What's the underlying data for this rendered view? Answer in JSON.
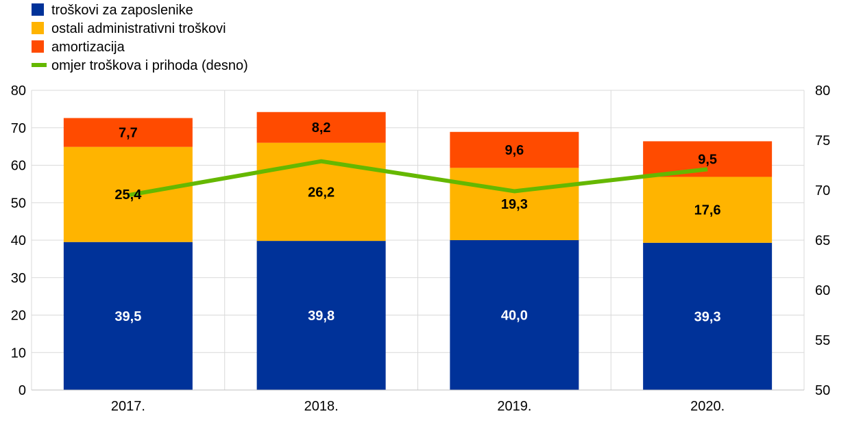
{
  "chart_data": {
    "type": "bar",
    "stacked": true,
    "categories": [
      "2017.",
      "2018.",
      "2019.",
      "2020."
    ],
    "series": [
      {
        "name": "troškovi za zaposlenike",
        "color": "#003299",
        "label_color": "#ffffff",
        "values": [
          39.5,
          39.8,
          40.0,
          39.3
        ],
        "labels": [
          "39,5",
          "39,8",
          "40,0",
          "39,3"
        ]
      },
      {
        "name": "ostali administrativni troškovi",
        "color": "#FFB400",
        "label_color": "#000000",
        "values": [
          25.4,
          26.2,
          19.3,
          17.6
        ],
        "labels": [
          "25,4",
          "26,2",
          "19,3",
          "17,6"
        ]
      },
      {
        "name": "amortizacija",
        "color": "#FF4B00",
        "label_color": "#000000",
        "values": [
          7.7,
          8.2,
          9.6,
          9.5
        ],
        "labels": [
          "7,7",
          "8,2",
          "9,6",
          "9,5"
        ]
      }
    ],
    "line_series": {
      "name": "omjer troškova i prihoda (desno)",
      "color": "#65B800",
      "axis": "right",
      "values": [
        69.5,
        72.9,
        69.9,
        72.1
      ]
    },
    "y_left": {
      "lim": [
        0,
        80
      ],
      "ticks": [
        "0",
        "10",
        "20",
        "30",
        "40",
        "50",
        "60",
        "70",
        "80"
      ]
    },
    "y_right": {
      "lim": [
        50,
        80
      ],
      "ticks": [
        "50",
        "55",
        "60",
        "65",
        "70",
        "75",
        "80"
      ]
    },
    "grid": true,
    "legend_position": "top-left"
  }
}
